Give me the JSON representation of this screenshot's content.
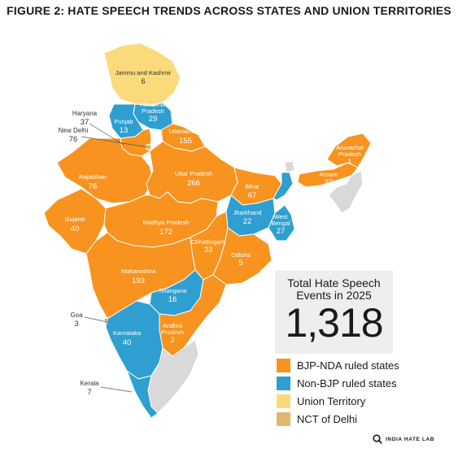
{
  "title": "FIGURE 2: HATE SPEECH TRENDS ACROSS STATES AND UNION TERRITORIES",
  "colors": {
    "bjp": "#f7931e",
    "nonbjp": "#2e9fd0",
    "ut": "#fada7a",
    "delhi": "#e2b870",
    "nodata": "#d9d9d9"
  },
  "regions": {
    "jammu_kashmir": {
      "name": "Jammu and Kashmir",
      "value": "6",
      "category": "ut"
    },
    "himachal": {
      "name": "Himachal Pradesh",
      "name_line1": "Himachal",
      "name_line2": "Pradesh",
      "value": "29",
      "category": "nonbjp"
    },
    "punjab": {
      "name": "Punjab",
      "value": "13",
      "category": "nonbjp"
    },
    "uttarakhand": {
      "name": "Uttarakhand",
      "value": "155",
      "category": "bjp"
    },
    "haryana": {
      "name": "Haryana",
      "value": "37",
      "category": "bjp"
    },
    "new_delhi": {
      "name": "New Delhi",
      "value": "76",
      "category": "delhi"
    },
    "rajasthan": {
      "name": "Rajasthan",
      "value": "76",
      "category": "bjp"
    },
    "uttar_pradesh": {
      "name": "Uttar Pradesh",
      "value": "266",
      "category": "bjp"
    },
    "bihar": {
      "name": "Bihar",
      "value": "67",
      "category": "bjp"
    },
    "arunachal": {
      "name": "Arunachal Pradesh",
      "name_line1": "Arunachal",
      "name_line2": "Pradesh",
      "value": "1",
      "category": "bjp"
    },
    "assam": {
      "name": "Assam",
      "value": "32",
      "category": "bjp"
    },
    "gujarat": {
      "name": "Gujarat",
      "value": "40",
      "category": "bjp"
    },
    "madhya_pradesh": {
      "name": "Madhya Pradesh",
      "value": "172",
      "category": "bjp"
    },
    "jharkhand": {
      "name": "Jharkhand",
      "value": "22",
      "category": "nonbjp"
    },
    "west_bengal": {
      "name": "West Bengal",
      "name_line1": "West",
      "name_line2": "Bengal",
      "value": "27",
      "category": "nonbjp"
    },
    "chhattisgarh": {
      "name": "Chhattisgarh",
      "value": "33",
      "category": "bjp"
    },
    "odisha": {
      "name": "Odisha",
      "value": "5",
      "category": "bjp"
    },
    "maharashtra": {
      "name": "Maharashtra",
      "value": "193",
      "category": "bjp"
    },
    "telangana": {
      "name": "Telangana",
      "value": "16",
      "category": "nonbjp"
    },
    "goa": {
      "name": "Goa",
      "value": "3",
      "category": "bjp"
    },
    "karnataka": {
      "name": "Karnataka",
      "value": "40",
      "category": "nonbjp"
    },
    "andhra": {
      "name": "Andhra Pradesh",
      "name_line1": "Andhra",
      "name_line2": "Pradesh",
      "value": "2",
      "category": "bjp"
    },
    "kerala": {
      "name": "Kerala",
      "value": "7",
      "category": "nonbjp"
    }
  },
  "total": {
    "label_line1": "Total Hate Speech",
    "label_line2": "Events in 2025",
    "value": "1,318"
  },
  "legend": [
    {
      "label": "BJP-NDA ruled states",
      "color": "#f7931e"
    },
    {
      "label": "Non-BJP ruled states",
      "color": "#2e9fd0"
    },
    {
      "label": "Union Territory",
      "color": "#fada7a"
    },
    {
      "label": "NCT of Delhi",
      "color": "#e2b870"
    }
  ],
  "brand": "INDIA HATE LAB"
}
